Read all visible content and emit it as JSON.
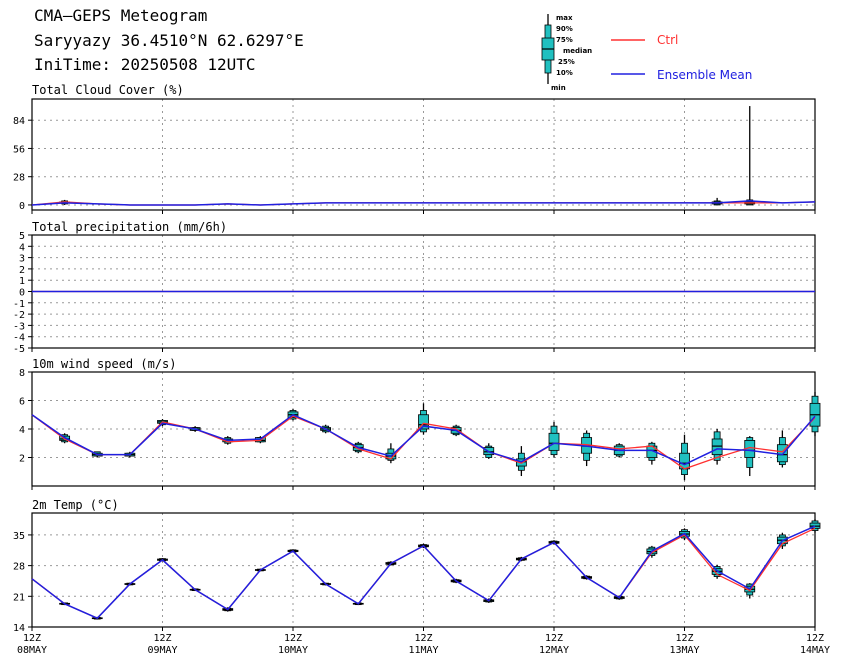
{
  "header": {
    "title": "CMA—GEPS Meteogram",
    "location": "Saryyazy 36.4510°N 62.6297°E",
    "init": "IniTime: 20250508 12UTC"
  },
  "legend": {
    "box_labels": [
      "max",
      "90%",
      "75%",
      "median",
      "25%",
      "10%",
      "min"
    ],
    "ctrl_label": "Ctrl",
    "mean_label": "Ensemble Mean",
    "ctrl_color": "#ff3030",
    "mean_color": "#2020e0",
    "box_color": "#20c0c0"
  },
  "x_ticks": [
    {
      "hour": 0,
      "top": "12Z",
      "bottom": "08MAY"
    },
    {
      "hour": 24,
      "top": "12Z",
      "bottom": "09MAY"
    },
    {
      "hour": 48,
      "top": "12Z",
      "bottom": "10MAY"
    },
    {
      "hour": 72,
      "top": "12Z",
      "bottom": "11MAY"
    },
    {
      "hour": 96,
      "top": "12Z",
      "bottom": "12MAY"
    },
    {
      "hour": 120,
      "top": "12Z",
      "bottom": "13MAY"
    },
    {
      "hour": 144,
      "top": "12Z",
      "bottom": "14MAY"
    }
  ],
  "chart_data": [
    {
      "type": "line",
      "title": "Total Cloud Cover (%)",
      "ylim": [
        -5,
        105
      ],
      "yticks": [
        0,
        28,
        56,
        84
      ],
      "x_hours": [
        0,
        6,
        12,
        18,
        24,
        30,
        36,
        42,
        48,
        54,
        60,
        66,
        72,
        78,
        84,
        90,
        96,
        102,
        108,
        114,
        120,
        126,
        132,
        138,
        144
      ],
      "ctrl": [
        0,
        3,
        1,
        0,
        0,
        0,
        1,
        0,
        1,
        2,
        2,
        2,
        2,
        2,
        2,
        2,
        2,
        2,
        2,
        2,
        2,
        2,
        2,
        2,
        3
      ],
      "mean": [
        0,
        2,
        1,
        0,
        0,
        0,
        1,
        0,
        1,
        2,
        2,
        2,
        2,
        2,
        2,
        2,
        2,
        2,
        2,
        2,
        2,
        2,
        4,
        2,
        3
      ],
      "boxes": [
        {
          "h": 6,
          "min": 0,
          "p10": 1,
          "p25": 2,
          "med": 2,
          "p75": 3,
          "p90": 4,
          "max": 5
        },
        {
          "h": 126,
          "min": 0,
          "p10": 0,
          "p25": 1,
          "med": 2,
          "p75": 3,
          "p90": 4,
          "max": 7
        },
        {
          "h": 132,
          "min": 0,
          "p10": 0,
          "p25": 1,
          "med": 2,
          "p75": 3,
          "p90": 5,
          "max": 98
        }
      ]
    },
    {
      "type": "line",
      "title": "Total precipitation (mm/6h)",
      "ylim": [
        -5,
        5
      ],
      "yticks": [
        -5,
        -4,
        -3,
        -2,
        -1,
        0,
        1,
        2,
        3,
        4,
        5
      ],
      "x_hours": [
        0,
        144
      ],
      "ctrl": [
        0,
        0
      ],
      "mean": [
        0,
        0
      ],
      "boxes": []
    },
    {
      "type": "line",
      "title": "10m wind speed (m/s)",
      "ylim": [
        0,
        8
      ],
      "yticks": [
        2,
        4,
        6,
        8
      ],
      "x_hours": [
        0,
        6,
        12,
        18,
        24,
        30,
        36,
        42,
        48,
        54,
        60,
        66,
        72,
        78,
        84,
        90,
        96,
        102,
        108,
        114,
        120,
        126,
        132,
        138,
        144
      ],
      "ctrl": [
        5.0,
        3.3,
        2.2,
        2.2,
        4.5,
        4.0,
        3.1,
        3.2,
        4.9,
        4.0,
        2.6,
        1.9,
        4.4,
        4.0,
        2.4,
        1.6,
        3.0,
        2.9,
        2.6,
        2.8,
        1.2,
        2.0,
        2.7,
        2.4,
        4.8
      ],
      "mean": [
        5.0,
        3.4,
        2.2,
        2.2,
        4.4,
        4.0,
        3.2,
        3.3,
        5.0,
        4.0,
        2.7,
        2.1,
        4.2,
        3.9,
        2.4,
        1.7,
        3.0,
        2.8,
        2.5,
        2.5,
        1.5,
        2.6,
        2.5,
        2.2,
        4.9
      ],
      "boxes": [
        {
          "h": 6,
          "min": 3.0,
          "p10": 3.1,
          "p25": 3.2,
          "med": 3.3,
          "p75": 3.5,
          "p90": 3.6,
          "max": 3.7
        },
        {
          "h": 12,
          "min": 2.0,
          "p10": 2.1,
          "p25": 2.1,
          "med": 2.2,
          "p75": 2.3,
          "p90": 2.4,
          "max": 2.4
        },
        {
          "h": 18,
          "min": 2.0,
          "p10": 2.1,
          "p25": 2.1,
          "med": 2.2,
          "p75": 2.3,
          "p90": 2.3,
          "max": 2.4
        },
        {
          "h": 24,
          "min": 4.2,
          "p10": 4.3,
          "p25": 4.4,
          "med": 4.5,
          "p75": 4.6,
          "p90": 4.6,
          "max": 4.7
        },
        {
          "h": 30,
          "min": 3.8,
          "p10": 3.9,
          "p25": 3.9,
          "med": 4.0,
          "p75": 4.1,
          "p90": 4.1,
          "max": 4.2
        },
        {
          "h": 36,
          "min": 2.9,
          "p10": 3.0,
          "p25": 3.1,
          "med": 3.2,
          "p75": 3.3,
          "p90": 3.4,
          "max": 3.5
        },
        {
          "h": 42,
          "min": 3.0,
          "p10": 3.1,
          "p25": 3.1,
          "med": 3.2,
          "p75": 3.4,
          "p90": 3.4,
          "max": 3.5
        },
        {
          "h": 48,
          "min": 4.6,
          "p10": 4.7,
          "p25": 4.8,
          "med": 5.0,
          "p75": 5.2,
          "p90": 5.3,
          "max": 5.4
        },
        {
          "h": 54,
          "min": 3.7,
          "p10": 3.8,
          "p25": 3.9,
          "med": 4.0,
          "p75": 4.1,
          "p90": 4.2,
          "max": 4.3
        },
        {
          "h": 60,
          "min": 2.3,
          "p10": 2.4,
          "p25": 2.5,
          "med": 2.7,
          "p75": 2.9,
          "p90": 3.0,
          "max": 3.1
        },
        {
          "h": 66,
          "min": 1.6,
          "p10": 1.8,
          "p25": 1.9,
          "med": 2.1,
          "p75": 2.3,
          "p90": 2.6,
          "max": 3.0
        },
        {
          "h": 72,
          "min": 3.6,
          "p10": 3.8,
          "p25": 4.0,
          "med": 4.3,
          "p75": 5.0,
          "p90": 5.3,
          "max": 5.8
        },
        {
          "h": 78,
          "min": 3.5,
          "p10": 3.6,
          "p25": 3.7,
          "med": 3.9,
          "p75": 4.1,
          "p90": 4.2,
          "max": 4.3
        },
        {
          "h": 84,
          "min": 1.9,
          "p10": 2.0,
          "p25": 2.2,
          "med": 2.4,
          "p75": 2.7,
          "p90": 2.8,
          "max": 3.0
        },
        {
          "h": 90,
          "min": 0.7,
          "p10": 1.1,
          "p25": 1.4,
          "med": 1.7,
          "p75": 1.9,
          "p90": 2.3,
          "max": 2.8
        },
        {
          "h": 96,
          "min": 2.0,
          "p10": 2.2,
          "p25": 2.5,
          "med": 3.0,
          "p75": 3.7,
          "p90": 4.2,
          "max": 4.5
        },
        {
          "h": 102,
          "min": 1.4,
          "p10": 1.8,
          "p25": 2.3,
          "med": 2.8,
          "p75": 3.4,
          "p90": 3.7,
          "max": 3.9
        },
        {
          "h": 108,
          "min": 2.0,
          "p10": 2.1,
          "p25": 2.2,
          "med": 2.5,
          "p75": 2.8,
          "p90": 2.9,
          "max": 3.0
        },
        {
          "h": 114,
          "min": 1.5,
          "p10": 1.8,
          "p25": 2.0,
          "med": 2.5,
          "p75": 2.8,
          "p90": 3.0,
          "max": 3.1
        },
        {
          "h": 120,
          "min": 0.4,
          "p10": 0.8,
          "p25": 1.2,
          "med": 1.6,
          "p75": 2.3,
          "p90": 3.0,
          "max": 3.6
        },
        {
          "h": 126,
          "min": 1.5,
          "p10": 1.8,
          "p25": 2.2,
          "med": 2.8,
          "p75": 3.3,
          "p90": 3.8,
          "max": 4.0
        },
        {
          "h": 132,
          "min": 0.7,
          "p10": 1.3,
          "p25": 2.0,
          "med": 2.5,
          "p75": 3.2,
          "p90": 3.4,
          "max": 3.5
        },
        {
          "h": 138,
          "min": 1.3,
          "p10": 1.5,
          "p25": 1.7,
          "med": 2.2,
          "p75": 2.9,
          "p90": 3.4,
          "max": 3.9
        },
        {
          "h": 144,
          "min": 3.5,
          "p10": 3.8,
          "p25": 4.2,
          "med": 5.0,
          "p75": 5.8,
          "p90": 6.3,
          "max": 6.6
        }
      ]
    },
    {
      "type": "line",
      "title": "2m Temp (°C)",
      "ylim": [
        14,
        40
      ],
      "yticks": [
        14,
        21,
        28,
        35
      ],
      "x_hours": [
        0,
        6,
        12,
        18,
        24,
        30,
        36,
        42,
        48,
        54,
        60,
        66,
        72,
        78,
        84,
        90,
        96,
        102,
        108,
        114,
        120,
        126,
        132,
        138,
        144
      ],
      "ctrl": [
        25.0,
        19.3,
        16.0,
        23.8,
        29.3,
        22.5,
        18.0,
        27.0,
        31.3,
        23.8,
        19.3,
        28.5,
        32.5,
        24.5,
        20.0,
        29.5,
        33.3,
        25.3,
        20.7,
        31.0,
        35.0,
        26.0,
        22.3,
        33.0,
        36.5
      ],
      "mean": [
        25.0,
        19.3,
        16.0,
        23.8,
        29.3,
        22.5,
        18.0,
        27.0,
        31.3,
        23.8,
        19.3,
        28.5,
        32.5,
        24.5,
        20.0,
        29.5,
        33.3,
        25.3,
        20.7,
        31.3,
        35.3,
        26.8,
        22.7,
        33.7,
        37.0
      ],
      "boxes": [
        {
          "h": 6,
          "min": 19.0,
          "p10": 19.1,
          "p25": 19.2,
          "med": 19.3,
          "p75": 19.4,
          "p90": 19.5,
          "max": 19.6
        },
        {
          "h": 12,
          "min": 15.7,
          "p10": 15.8,
          "p25": 15.9,
          "med": 16.0,
          "p75": 16.1,
          "p90": 16.2,
          "max": 16.3
        },
        {
          "h": 18,
          "min": 23.5,
          "p10": 23.6,
          "p25": 23.7,
          "med": 23.8,
          "p75": 23.9,
          "p90": 24.0,
          "max": 24.1
        },
        {
          "h": 24,
          "min": 29.0,
          "p10": 29.1,
          "p25": 29.2,
          "med": 29.3,
          "p75": 29.5,
          "p90": 29.6,
          "max": 29.7
        },
        {
          "h": 30,
          "min": 22.2,
          "p10": 22.3,
          "p25": 22.4,
          "med": 22.5,
          "p75": 22.6,
          "p90": 22.7,
          "max": 22.8
        },
        {
          "h": 36,
          "min": 17.5,
          "p10": 17.7,
          "p25": 17.8,
          "med": 18.0,
          "p75": 18.2,
          "p90": 18.3,
          "max": 18.5
        },
        {
          "h": 42,
          "min": 26.7,
          "p10": 26.8,
          "p25": 26.9,
          "med": 27.0,
          "p75": 27.1,
          "p90": 27.2,
          "max": 27.3
        },
        {
          "h": 48,
          "min": 31.0,
          "p10": 31.1,
          "p25": 31.2,
          "med": 31.3,
          "p75": 31.5,
          "p90": 31.6,
          "max": 31.7
        },
        {
          "h": 54,
          "min": 23.5,
          "p10": 23.6,
          "p25": 23.7,
          "med": 23.8,
          "p75": 23.9,
          "p90": 24.0,
          "max": 24.1
        },
        {
          "h": 60,
          "min": 19.0,
          "p10": 19.1,
          "p25": 19.2,
          "med": 19.3,
          "p75": 19.4,
          "p90": 19.5,
          "max": 19.6
        },
        {
          "h": 66,
          "min": 28.0,
          "p10": 28.2,
          "p25": 28.3,
          "med": 28.5,
          "p75": 28.7,
          "p90": 28.8,
          "max": 29.0
        },
        {
          "h": 72,
          "min": 32.0,
          "p10": 32.2,
          "p25": 32.3,
          "med": 32.5,
          "p75": 32.7,
          "p90": 32.8,
          "max": 33.0
        },
        {
          "h": 78,
          "min": 24.0,
          "p10": 24.2,
          "p25": 24.3,
          "med": 24.5,
          "p75": 24.7,
          "p90": 24.8,
          "max": 25.0
        },
        {
          "h": 84,
          "min": 19.5,
          "p10": 19.7,
          "p25": 19.8,
          "med": 20.0,
          "p75": 20.2,
          "p90": 20.3,
          "max": 20.5
        },
        {
          "h": 90,
          "min": 29.0,
          "p10": 29.2,
          "p25": 29.3,
          "med": 29.5,
          "p75": 29.7,
          "p90": 29.8,
          "max": 30.0
        },
        {
          "h": 96,
          "min": 32.8,
          "p10": 33.0,
          "p25": 33.1,
          "med": 33.3,
          "p75": 33.5,
          "p90": 33.6,
          "max": 33.8
        },
        {
          "h": 102,
          "min": 24.8,
          "p10": 25.0,
          "p25": 25.1,
          "med": 25.3,
          "p75": 25.5,
          "p90": 25.6,
          "max": 25.8
        },
        {
          "h": 108,
          "min": 20.2,
          "p10": 20.4,
          "p25": 20.5,
          "med": 20.7,
          "p75": 20.9,
          "p90": 21.0,
          "max": 21.2
        },
        {
          "h": 114,
          "min": 29.8,
          "p10": 30.3,
          "p25": 30.7,
          "med": 31.2,
          "p75": 31.8,
          "p90": 32.2,
          "max": 32.5
        },
        {
          "h": 120,
          "min": 33.8,
          "p10": 34.3,
          "p25": 34.7,
          "med": 35.2,
          "p75": 35.8,
          "p90": 36.2,
          "max": 36.5
        },
        {
          "h": 126,
          "min": 25.0,
          "p10": 25.5,
          "p25": 26.0,
          "med": 26.7,
          "p75": 27.3,
          "p90": 27.8,
          "max": 28.2
        },
        {
          "h": 132,
          "min": 20.5,
          "p10": 21.3,
          "p25": 22.0,
          "med": 22.6,
          "p75": 23.3,
          "p90": 23.8,
          "max": 24.0
        },
        {
          "h": 138,
          "min": 31.8,
          "p10": 32.5,
          "p25": 33.0,
          "med": 33.8,
          "p75": 34.5,
          "p90": 35.0,
          "max": 35.5
        },
        {
          "h": 144,
          "min": 35.5,
          "p10": 36.0,
          "p25": 36.5,
          "med": 37.0,
          "p75": 37.7,
          "p90": 38.2,
          "max": 38.6
        }
      ]
    }
  ]
}
